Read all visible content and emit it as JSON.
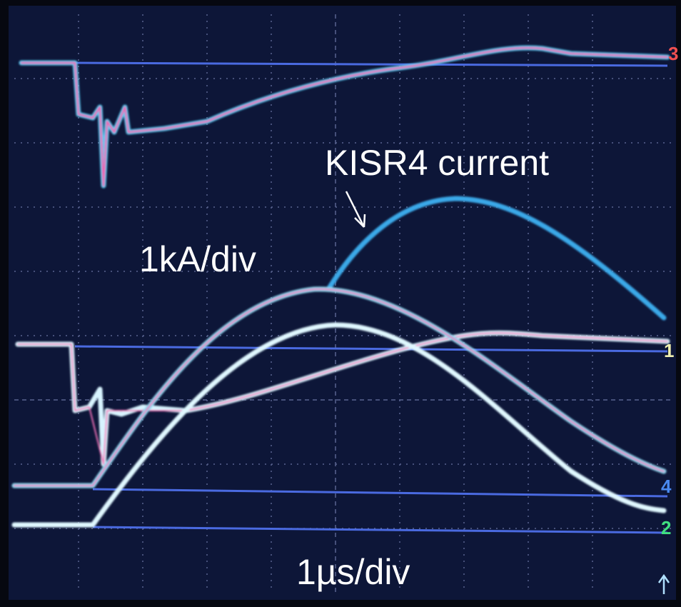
{
  "annotations": {
    "signal_label": "KISR4 current",
    "vertical_scale": "1kA/div",
    "time_scale": "1µs/div"
  },
  "channel_markers": [
    "3",
    "1",
    "4",
    "2"
  ]
}
